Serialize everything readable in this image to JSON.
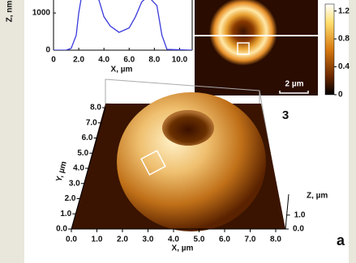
{
  "chart_data": {
    "type": "line",
    "xlabel": "X, µm",
    "ylabel": "Z, nm",
    "x": [
      0,
      1.0,
      1.4,
      1.8,
      2.0,
      2.2,
      3.0,
      3.6,
      4.0,
      4.5,
      5.2,
      6.0,
      6.5,
      7.0,
      7.5,
      8.2,
      8.6,
      9.0,
      11.0
    ],
    "series": [
      {
        "color": "#3a3adc",
        "values": [
          0,
          0,
          50,
          400,
          1000,
          1400,
          1500,
          1350,
          900,
          650,
          480,
          600,
          900,
          1300,
          1450,
          1200,
          400,
          20,
          0
        ]
      }
    ],
    "xlim": [
      0,
      11
    ],
    "xticks": [
      0,
      {
        "value": 2,
        "label": "2.0"
      },
      {
        "value": 4,
        "label": "4.0"
      },
      {
        "value": 6,
        "label": "6.0"
      },
      {
        "value": 8,
        "label": "8.0"
      },
      {
        "value": 10,
        "label": "10.0"
      }
    ],
    "ylim": [
      0,
      1350
    ],
    "yticks": [
      0,
      1000
    ]
  },
  "image_panel": {
    "label": "3",
    "scale_bar": "2 µm"
  },
  "colorbar": {
    "lim": [
      0,
      1.3
    ],
    "ticks": [
      0,
      0.4,
      0.8,
      1.2
    ]
  },
  "surface_plot": {
    "x_label": "X, µm",
    "y_label": "Y, µm",
    "z_label": "Z, µm",
    "panel_label": "a",
    "xlim": [
      0,
      8
    ],
    "ylim": [
      0,
      8
    ],
    "zlim": [
      0,
      2.5
    ],
    "xticks": [
      {
        "value": 0,
        "label": "0.0"
      },
      {
        "value": 1,
        "label": "1.0"
      },
      {
        "value": 2,
        "label": "2.0"
      },
      {
        "value": 3,
        "label": "3.0"
      },
      {
        "value": 4,
        "label": "4.0"
      },
      {
        "value": 5,
        "label": "5.0"
      },
      {
        "value": 6,
        "label": "6.0"
      },
      {
        "value": 7,
        "label": "7.0"
      },
      {
        "value": 8,
        "label": "8.0"
      }
    ],
    "yticks": [
      {
        "value": 0,
        "label": "0.0"
      },
      {
        "value": 1,
        "label": "1.0"
      },
      {
        "value": 2,
        "label": "2.0"
      },
      {
        "value": 3,
        "label": "3.0"
      },
      {
        "value": 4,
        "label": "4.0"
      },
      {
        "value": 5,
        "label": "5.0"
      },
      {
        "value": 6,
        "label": "6.0"
      },
      {
        "value": 7,
        "label": "7.0"
      },
      {
        "value": 8,
        "label": "8.0"
      }
    ],
    "zticks": [
      {
        "value": 0,
        "label": "0.0"
      },
      {
        "value": 1,
        "label": "1.0"
      }
    ]
  }
}
